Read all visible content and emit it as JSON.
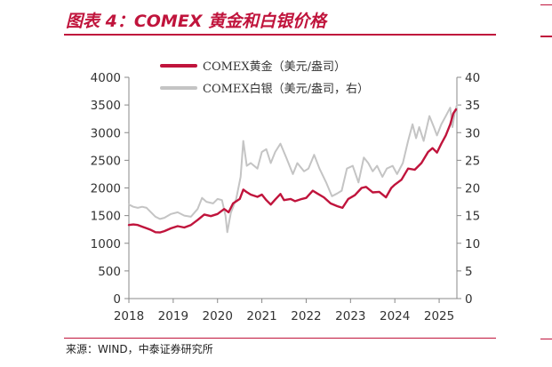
{
  "title": "图表 4：COMEX 黄金和白银价格",
  "source": "来源：WIND，中泰证券研究所",
  "colors": {
    "accent": "#c0143c",
    "gold": "#c0143c",
    "silver": "#c4c4c4",
    "axis": "#888888"
  },
  "chart_data": {
    "type": "line",
    "x_ticks": [
      "2018",
      "2019",
      "2020",
      "2021",
      "2022",
      "2023",
      "2024",
      "2025"
    ],
    "xlim": [
      2018.0,
      2025.4
    ],
    "y_left": {
      "ticks": [
        "0",
        "500",
        "1000",
        "1500",
        "2000",
        "2500",
        "3000",
        "3500",
        "4000"
      ],
      "ylim": [
        0,
        4000
      ]
    },
    "y_right": {
      "ticks": [
        "0",
        "5",
        "10",
        "15",
        "20",
        "25",
        "30",
        "35",
        "40"
      ],
      "ylim": [
        0,
        40
      ]
    },
    "legend_position": "top",
    "grid": false,
    "series": [
      {
        "name": "COMEX黄金（美元/盎司）",
        "axis": "left",
        "color": "#c0143c",
        "points": [
          [
            2018.0,
            1330
          ],
          [
            2018.1,
            1340
          ],
          [
            2018.2,
            1330
          ],
          [
            2018.3,
            1300
          ],
          [
            2018.4,
            1270
          ],
          [
            2018.5,
            1240
          ],
          [
            2018.6,
            1200
          ],
          [
            2018.7,
            1195
          ],
          [
            2018.8,
            1220
          ],
          [
            2018.95,
            1270
          ],
          [
            2019.1,
            1310
          ],
          [
            2019.25,
            1285
          ],
          [
            2019.4,
            1330
          ],
          [
            2019.55,
            1420
          ],
          [
            2019.7,
            1520
          ],
          [
            2019.85,
            1490
          ],
          [
            2020.0,
            1530
          ],
          [
            2020.15,
            1620
          ],
          [
            2020.25,
            1560
          ],
          [
            2020.35,
            1720
          ],
          [
            2020.5,
            1800
          ],
          [
            2020.58,
            1970
          ],
          [
            2020.65,
            1930
          ],
          [
            2020.75,
            1880
          ],
          [
            2020.9,
            1840
          ],
          [
            2021.0,
            1880
          ],
          [
            2021.1,
            1780
          ],
          [
            2021.2,
            1700
          ],
          [
            2021.3,
            1790
          ],
          [
            2021.42,
            1890
          ],
          [
            2021.5,
            1780
          ],
          [
            2021.65,
            1800
          ],
          [
            2021.75,
            1760
          ],
          [
            2021.9,
            1800
          ],
          [
            2022.0,
            1820
          ],
          [
            2022.15,
            1950
          ],
          [
            2022.25,
            1900
          ],
          [
            2022.4,
            1830
          ],
          [
            2022.55,
            1720
          ],
          [
            2022.7,
            1670
          ],
          [
            2022.82,
            1640
          ],
          [
            2022.95,
            1800
          ],
          [
            2023.1,
            1870
          ],
          [
            2023.25,
            2000
          ],
          [
            2023.35,
            2020
          ],
          [
            2023.5,
            1920
          ],
          [
            2023.65,
            1930
          ],
          [
            2023.8,
            1830
          ],
          [
            2023.92,
            2000
          ],
          [
            2024.0,
            2060
          ],
          [
            2024.15,
            2150
          ],
          [
            2024.3,
            2350
          ],
          [
            2024.45,
            2330
          ],
          [
            2024.6,
            2450
          ],
          [
            2024.75,
            2650
          ],
          [
            2024.85,
            2720
          ],
          [
            2024.95,
            2640
          ],
          [
            2025.05,
            2800
          ],
          [
            2025.15,
            2950
          ],
          [
            2025.25,
            3150
          ],
          [
            2025.32,
            3350
          ],
          [
            2025.38,
            3420
          ]
        ]
      },
      {
        "name": "COMEX白银（美元/盎司，右）",
        "axis": "right",
        "color": "#c4c4c4",
        "points": [
          [
            2018.0,
            17.0
          ],
          [
            2018.1,
            16.6
          ],
          [
            2018.2,
            16.4
          ],
          [
            2018.3,
            16.6
          ],
          [
            2018.4,
            16.4
          ],
          [
            2018.5,
            15.6
          ],
          [
            2018.6,
            14.8
          ],
          [
            2018.7,
            14.4
          ],
          [
            2018.8,
            14.6
          ],
          [
            2018.95,
            15.3
          ],
          [
            2019.1,
            15.6
          ],
          [
            2019.25,
            15.0
          ],
          [
            2019.4,
            14.8
          ],
          [
            2019.55,
            16.2
          ],
          [
            2019.65,
            18.2
          ],
          [
            2019.75,
            17.5
          ],
          [
            2019.9,
            17.2
          ],
          [
            2020.0,
            18.0
          ],
          [
            2020.1,
            17.8
          ],
          [
            2020.18,
            15.0
          ],
          [
            2020.22,
            12.0
          ],
          [
            2020.3,
            15.5
          ],
          [
            2020.42,
            18.0
          ],
          [
            2020.52,
            22.0
          ],
          [
            2020.58,
            28.5
          ],
          [
            2020.66,
            24.0
          ],
          [
            2020.75,
            24.5
          ],
          [
            2020.9,
            23.5
          ],
          [
            2021.0,
            26.5
          ],
          [
            2021.1,
            27.0
          ],
          [
            2021.2,
            24.5
          ],
          [
            2021.3,
            26.5
          ],
          [
            2021.42,
            28.0
          ],
          [
            2021.55,
            25.5
          ],
          [
            2021.7,
            22.5
          ],
          [
            2021.8,
            24.5
          ],
          [
            2021.95,
            23.0
          ],
          [
            2022.05,
            23.5
          ],
          [
            2022.18,
            26.0
          ],
          [
            2022.3,
            23.5
          ],
          [
            2022.45,
            21.0
          ],
          [
            2022.58,
            18.5
          ],
          [
            2022.7,
            19.0
          ],
          [
            2022.8,
            19.5
          ],
          [
            2022.92,
            23.5
          ],
          [
            2023.05,
            24.0
          ],
          [
            2023.18,
            21.0
          ],
          [
            2023.3,
            25.5
          ],
          [
            2023.4,
            24.5
          ],
          [
            2023.5,
            23.0
          ],
          [
            2023.6,
            24.0
          ],
          [
            2023.72,
            22.0
          ],
          [
            2023.82,
            23.5
          ],
          [
            2023.95,
            24.0
          ],
          [
            2024.05,
            22.5
          ],
          [
            2024.18,
            24.5
          ],
          [
            2024.3,
            28.5
          ],
          [
            2024.4,
            31.5
          ],
          [
            2024.48,
            29.0
          ],
          [
            2024.55,
            31.0
          ],
          [
            2024.65,
            28.5
          ],
          [
            2024.78,
            33.0
          ],
          [
            2024.88,
            31.0
          ],
          [
            2024.95,
            29.5
          ],
          [
            2025.05,
            31.5
          ],
          [
            2025.15,
            33.0
          ],
          [
            2025.25,
            34.5
          ],
          [
            2025.3,
            31.0
          ],
          [
            2025.35,
            33.5
          ],
          [
            2025.4,
            35.0
          ]
        ]
      }
    ]
  }
}
